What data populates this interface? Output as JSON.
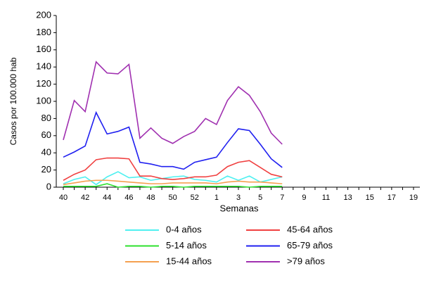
{
  "chart_data": {
    "type": "line",
    "ylabel": "Casos por 100.000 hab",
    "xlabel": "Semanas",
    "categories": [
      "40",
      null,
      "42",
      null,
      "44",
      null,
      "46",
      null,
      "48",
      null,
      "50",
      null,
      "52",
      null,
      "1",
      null,
      "3",
      null,
      "5",
      null,
      "7",
      null,
      "9",
      null,
      "11",
      null,
      "13",
      null,
      "15",
      null,
      "17",
      null,
      "19"
    ],
    "ylim": [
      0,
      200
    ],
    "yticks": [
      0,
      20,
      40,
      60,
      80,
      100,
      120,
      140,
      160,
      180,
      200
    ],
    "series": [
      {
        "name": "0-4 años",
        "color": "#4ff0f0",
        "values": [
          4,
          9,
          12,
          3,
          12,
          18,
          11,
          12,
          8,
          10,
          12,
          13,
          9,
          8,
          6,
          13,
          8,
          13,
          6,
          9,
          12,
          null,
          null,
          null,
          null,
          null,
          null,
          null,
          null,
          null,
          null,
          null,
          null
        ]
      },
      {
        "name": "5-14 años",
        "color": "#2ee02e",
        "values": [
          1,
          1,
          1,
          1,
          4,
          0,
          1,
          1,
          0,
          1,
          1,
          0,
          1,
          1,
          1,
          1,
          1,
          0,
          1,
          1,
          1,
          null,
          null,
          null,
          null,
          null,
          null,
          null,
          null,
          null,
          null,
          null,
          null
        ]
      },
      {
        "name": "15-44 años",
        "color": "#f5a050",
        "values": [
          3,
          5,
          7,
          8,
          8,
          7,
          6,
          5,
          4,
          4,
          5,
          5,
          5,
          5,
          4,
          6,
          7,
          6,
          6,
          5,
          4,
          null,
          null,
          null,
          null,
          null,
          null,
          null,
          null,
          null,
          null,
          null,
          null
        ]
      },
      {
        "name": "45-64 años",
        "color": "#f04040",
        "values": [
          8,
          15,
          20,
          32,
          34,
          34,
          33,
          13,
          13,
          10,
          9,
          10,
          12,
          12,
          14,
          24,
          29,
          31,
          23,
          15,
          12,
          null,
          null,
          null,
          null,
          null,
          null,
          null,
          null,
          null,
          null,
          null,
          null
        ]
      },
      {
        "name": "65-79 años",
        "color": "#2020f0",
        "values": [
          35,
          41,
          48,
          87,
          62,
          65,
          70,
          29,
          27,
          24,
          24,
          21,
          29,
          32,
          35,
          52,
          68,
          66,
          50,
          33,
          23,
          null,
          null,
          null,
          null,
          null,
          null,
          null,
          null,
          null,
          null,
          null,
          null
        ]
      },
      {
        "name": ">79 años",
        "color": "#a030b0",
        "values": [
          55,
          101,
          88,
          146,
          133,
          132,
          143,
          57,
          69,
          57,
          51,
          59,
          65,
          80,
          73,
          101,
          117,
          107,
          88,
          63,
          50,
          null,
          null,
          null,
          null,
          null,
          null,
          null,
          null,
          null,
          null,
          null,
          null
        ]
      }
    ]
  }
}
